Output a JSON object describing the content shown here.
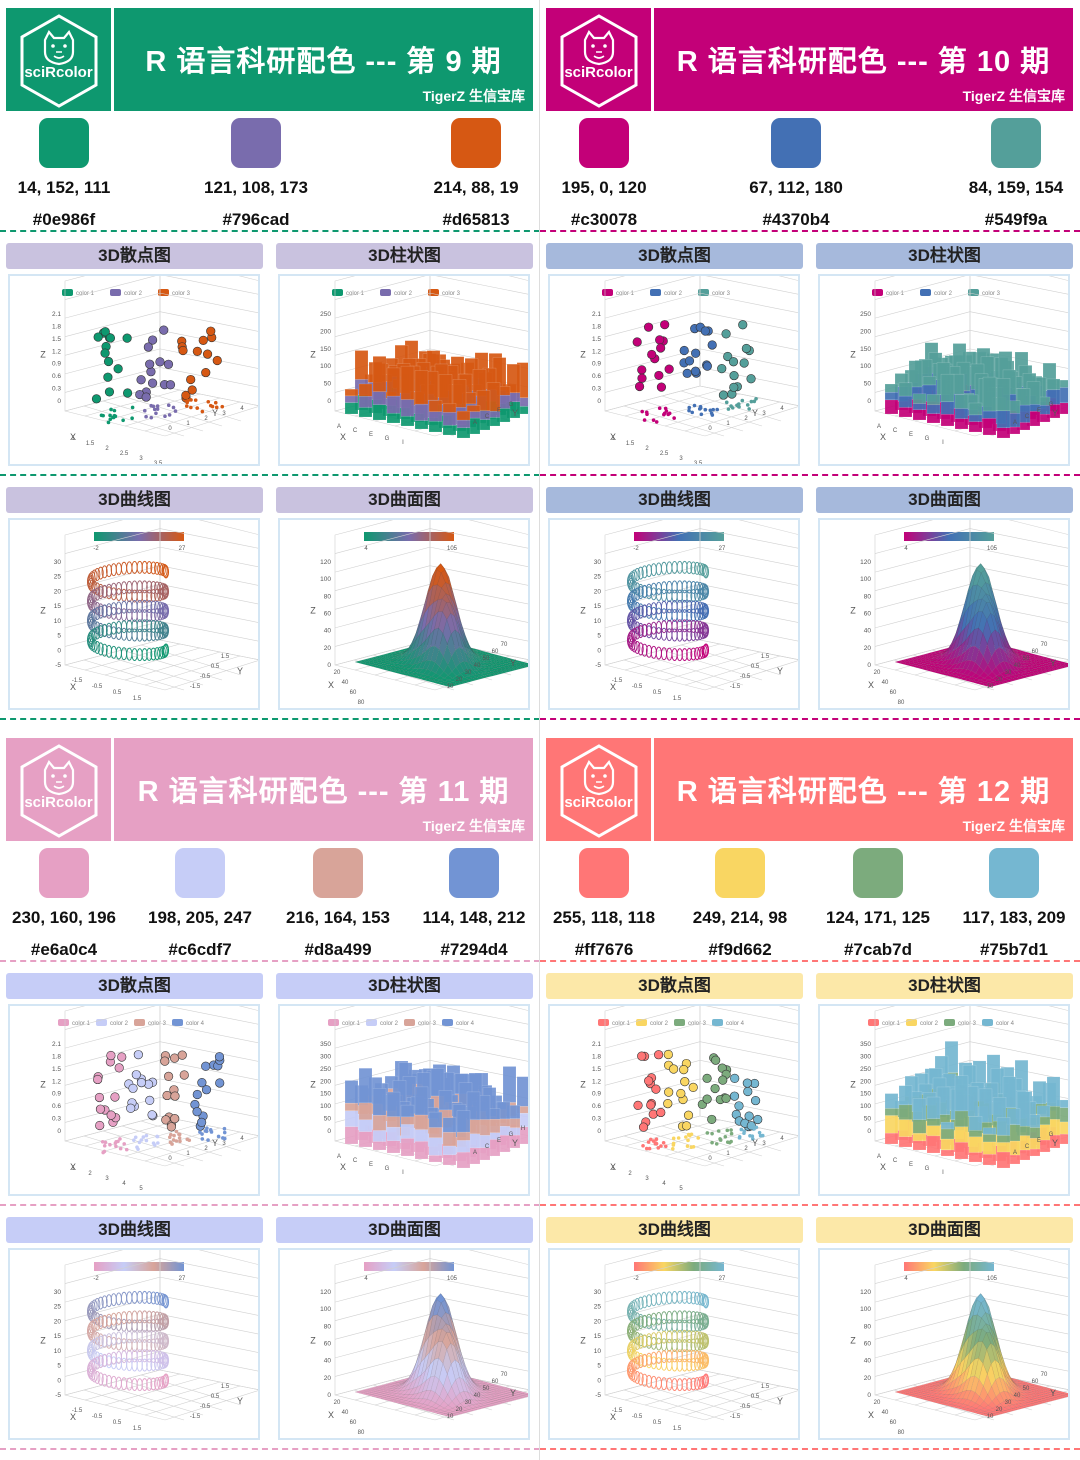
{
  "brand": "sciRcolor",
  "subtitle": "TigerZ 生信宝库",
  "chart_titles": {
    "scatter": "3D散点图",
    "bar": "3D柱状图",
    "curve": "3D曲线图",
    "surface": "3D曲面图"
  },
  "panels": [
    {
      "title": "R 语言科研配色 --- 第 9 期",
      "header_color": "#0e986f",
      "label_color": "#c9c2df",
      "dash_color": "#0e986f",
      "colors": [
        {
          "rgb": "14, 152, 111",
          "hex": "#0e986f"
        },
        {
          "rgb": "121, 108, 173",
          "hex": "#796cad"
        },
        {
          "rgb": "214, 88, 19",
          "hex": "#d65813"
        }
      ],
      "legend": [
        "color 1",
        "color 2",
        "color 3"
      ],
      "scatter_y_ticks": [
        "2.1",
        "1.8",
        "1.5",
        "1.2",
        "0.9",
        "0.6",
        "0.3",
        "0"
      ],
      "scatter_x_ticks": [
        "1",
        "1.5",
        "2",
        "2.5",
        "3",
        "3.5"
      ],
      "scatter_y2_ticks": [
        "0",
        "1",
        "2",
        "3",
        "4",
        "5"
      ],
      "bar_y_ticks": [
        "250",
        "200",
        "150",
        "100",
        "50",
        "0"
      ],
      "bar_x_ticks": [
        "A",
        "C",
        "E",
        "G",
        "I"
      ],
      "bar_y2_ticks": [
        "A",
        "C",
        "E",
        "G"
      ],
      "curve_colorbar": [
        "-2",
        "27"
      ],
      "curve_z_ticks": [
        "30",
        "25",
        "20",
        "15",
        "10",
        "5",
        "0",
        "-5"
      ],
      "curve_x_ticks": [
        "-1.5",
        "-0.5",
        "0.5",
        "1.5"
      ],
      "curve_y_ticks": [
        "1.5",
        "0.5",
        "-0.5",
        "-1.5"
      ],
      "surface_colorbar": [
        "4",
        "105"
      ],
      "surface_z_ticks": [
        "120",
        "100",
        "80",
        "60",
        "40",
        "20",
        "0"
      ],
      "surface_x_ticks": [
        "20",
        "40",
        "60",
        "80"
      ],
      "surface_y_ticks": [
        "10",
        "20",
        "30",
        "40",
        "50",
        "60",
        "70"
      ]
    },
    {
      "title": "R 语言科研配色 --- 第 10 期",
      "header_color": "#c30078",
      "label_color": "#a6b9dc",
      "dash_color": "#c30078",
      "colors": [
        {
          "rgb": "195, 0, 120",
          "hex": "#c30078"
        },
        {
          "rgb": "67, 112, 180",
          "hex": "#4370b4"
        },
        {
          "rgb": "84, 159, 154",
          "hex": "#549f9a"
        }
      ],
      "legend": [
        "color 1",
        "color 2",
        "color 3"
      ],
      "scatter_y_ticks": [
        "2.1",
        "1.8",
        "1.5",
        "1.2",
        "0.9",
        "0.6",
        "0.3",
        "0"
      ],
      "scatter_x_ticks": [
        "1",
        "1.5",
        "2",
        "2.5",
        "3",
        "3.5"
      ],
      "scatter_y2_ticks": [
        "0",
        "1",
        "2",
        "3",
        "4",
        "5"
      ],
      "bar_y_ticks": [
        "250",
        "200",
        "150",
        "100",
        "50",
        "0"
      ],
      "bar_x_ticks": [
        "A",
        "C",
        "E",
        "G",
        "I"
      ],
      "bar_y2_ticks": [
        "A",
        "C",
        "E",
        "G"
      ],
      "curve_colorbar": [
        "-2",
        "27"
      ],
      "curve_z_ticks": [
        "30",
        "25",
        "20",
        "15",
        "10",
        "5",
        "0",
        "-5"
      ],
      "curve_x_ticks": [
        "-1.5",
        "-0.5",
        "0.5",
        "1.5"
      ],
      "curve_y_ticks": [
        "1.5",
        "0.5",
        "-0.5",
        "-1.5"
      ],
      "surface_colorbar": [
        "4",
        "105"
      ],
      "surface_z_ticks": [
        "120",
        "100",
        "80",
        "60",
        "40",
        "20",
        "0"
      ],
      "surface_x_ticks": [
        "20",
        "40",
        "60",
        "80"
      ],
      "surface_y_ticks": [
        "10",
        "20",
        "30",
        "40",
        "50",
        "60",
        "70"
      ]
    },
    {
      "title": "R 语言科研配色 --- 第 11 期",
      "header_color": "#e6a0c4",
      "label_color": "#c6cdf7",
      "dash_color": "#e6a0c4",
      "colors": [
        {
          "rgb": "230, 160, 196",
          "hex": "#e6a0c4"
        },
        {
          "rgb": "198, 205, 247",
          "hex": "#c6cdf7"
        },
        {
          "rgb": "216, 164, 153",
          "hex": "#d8a499"
        },
        {
          "rgb": "114, 148, 212",
          "hex": "#7294d4"
        }
      ],
      "legend": [
        "color 1",
        "color 2",
        "color 3",
        "color 4"
      ],
      "scatter_y_ticks": [
        "2.1",
        "1.8",
        "1.5",
        "1.2",
        "0.9",
        "0.6",
        "0.3",
        "0"
      ],
      "scatter_x_ticks": [
        "1",
        "2",
        "3",
        "4",
        "5"
      ],
      "scatter_y2_ticks": [
        "0",
        "1",
        "2",
        "3",
        "4",
        "5",
        "6"
      ],
      "bar_y_ticks": [
        "350",
        "300",
        "250",
        "200",
        "150",
        "100",
        "50",
        "0"
      ],
      "bar_x_ticks": [
        "A",
        "C",
        "E",
        "G",
        "I"
      ],
      "bar_y2_ticks": [
        "A",
        "C",
        "E",
        "G",
        "H"
      ],
      "curve_colorbar": [
        "-2",
        "27"
      ],
      "curve_z_ticks": [
        "30",
        "25",
        "20",
        "15",
        "10",
        "5",
        "0",
        "-5"
      ],
      "curve_x_ticks": [
        "-1.5",
        "-0.5",
        "0.5",
        "1.5"
      ],
      "curve_y_ticks": [
        "1.5",
        "0.5",
        "-0.5",
        "-1.5"
      ],
      "surface_colorbar": [
        "4",
        "105"
      ],
      "surface_z_ticks": [
        "120",
        "100",
        "80",
        "60",
        "40",
        "20",
        "0"
      ],
      "surface_x_ticks": [
        "20",
        "40",
        "60",
        "80"
      ],
      "surface_y_ticks": [
        "10",
        "20",
        "30",
        "40",
        "50",
        "60",
        "70"
      ]
    },
    {
      "title": "R 语言科研配色 --- 第 12 期",
      "header_color": "#ff7676",
      "label_color": "#fce8a8",
      "dash_color": "#ff7676",
      "colors": [
        {
          "rgb": "255, 118, 118",
          "hex": "#ff7676"
        },
        {
          "rgb": "249, 214, 98",
          "hex": "#f9d662"
        },
        {
          "rgb": "124, 171, 125",
          "hex": "#7cab7d"
        },
        {
          "rgb": "117, 183, 209",
          "hex": "#75b7d1"
        }
      ],
      "legend": [
        "color 1",
        "color 2",
        "color 3",
        "color 4"
      ],
      "scatter_y_ticks": [
        "2.1",
        "1.8",
        "1.5",
        "1.2",
        "0.9",
        "0.6",
        "0.3",
        "0"
      ],
      "scatter_x_ticks": [
        "1",
        "2",
        "3",
        "4",
        "5"
      ],
      "scatter_y2_ticks": [
        "0",
        "1",
        "2",
        "3",
        "4",
        "5",
        "6"
      ],
      "bar_y_ticks": [
        "350",
        "300",
        "250",
        "200",
        "150",
        "100",
        "50",
        "0"
      ],
      "bar_x_ticks": [
        "A",
        "C",
        "E",
        "G",
        "I"
      ],
      "bar_y2_ticks": [
        "A",
        "C",
        "E",
        "G"
      ],
      "curve_colorbar": [
        "-2",
        "27"
      ],
      "curve_z_ticks": [
        "30",
        "25",
        "20",
        "15",
        "10",
        "5",
        "0",
        "-5"
      ],
      "curve_x_ticks": [
        "-1.5",
        "-0.5",
        "0.5",
        "1.5"
      ],
      "curve_y_ticks": [
        "1.5",
        "0.5",
        "-0.5",
        "-1.5"
      ],
      "surface_colorbar": [
        "4",
        "105"
      ],
      "surface_z_ticks": [
        "120",
        "100",
        "80",
        "60",
        "40",
        "20",
        "0"
      ],
      "surface_x_ticks": [
        "20",
        "40",
        "60",
        "80"
      ],
      "surface_y_ticks": [
        "10",
        "20",
        "30",
        "40",
        "50",
        "60",
        "70"
      ]
    }
  ]
}
